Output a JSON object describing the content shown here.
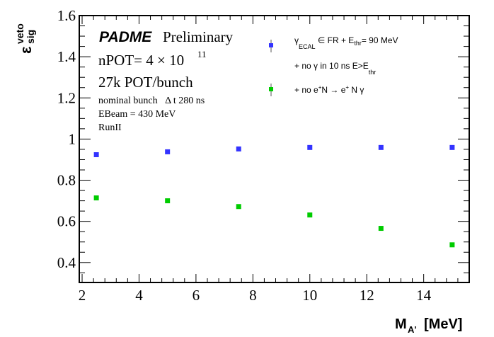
{
  "chart_data": {
    "type": "scatter",
    "title": "",
    "xlabel": "M",
    "xlabel_sub": "A'",
    "xlabel_unit": "[MeV]",
    "ylabel": "ε",
    "ylabel_sup": "veto",
    "ylabel_sub": "sig",
    "xlim": [
      1.9,
      15.6
    ],
    "ylim": [
      0.303,
      1.6
    ],
    "x_ticks": [
      2,
      4,
      6,
      8,
      10,
      12,
      14
    ],
    "x_tick_labels": [
      "2",
      "4",
      "6",
      "8",
      "10",
      "12",
      "14"
    ],
    "y_ticks": [
      0.4,
      0.6,
      0.8,
      1.0,
      1.2,
      1.4,
      1.6
    ],
    "y_tick_labels": [
      "0.4",
      "0.6",
      "0.8",
      "1",
      "1.2",
      "1.4",
      "1.6"
    ],
    "grid": false,
    "legend_position": "top-right",
    "series": [
      {
        "name": "γ_ECAL ∈ FR + E_thr= 90 MeV + no γ in 10 ns E>E_thr",
        "color": "#3333ff",
        "x": [
          2.5,
          5,
          7.5,
          10,
          12.5,
          15
        ],
        "y": [
          0.924,
          0.938,
          0.952,
          0.959,
          0.959,
          0.959
        ]
      },
      {
        "name": "+ no e+N → e+ N γ",
        "color": "#00cc00",
        "x": [
          2.5,
          5,
          7.5,
          10,
          12.5,
          15
        ],
        "y": [
          0.714,
          0.7,
          0.672,
          0.631,
          0.566,
          0.486
        ]
      }
    ],
    "annotations": {
      "experiment": "PADME",
      "status": "Preliminary",
      "npot_prefix": "nPOT= 4 × 10",
      "npot_exp": "11",
      "pot_bunch": "27k POT/bunch",
      "bunch": "nominal bunch   Δ t 280 ns",
      "ebeam": "EBeam = 430 MeV",
      "run": "RunII"
    },
    "legend": {
      "entry1_line1_a": "γ",
      "entry1_line1_sub": "ECAL",
      "entry1_line1_b": " ∈ FR + E",
      "entry1_line1_sub2": "thr",
      "entry1_line1_c": "= 90 MeV",
      "entry1_line2_a": "+ no γ in 10 ns E>E",
      "entry1_line2_sub": "thr",
      "entry2_a": "+ no e",
      "entry2_sup1": "+",
      "entry2_b": "N → e",
      "entry2_sup2": "+",
      "entry2_c": " N γ"
    }
  }
}
